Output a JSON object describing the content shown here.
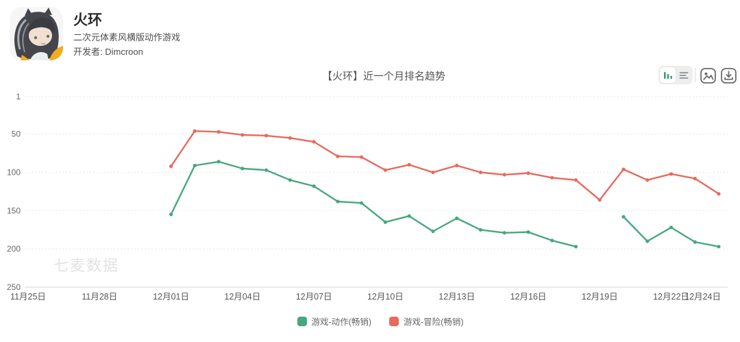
{
  "app": {
    "name": "火环",
    "subtitle": "二次元体素风横版动作游戏",
    "developer": "开发者: Dimcroon",
    "icon": "anime-girl-app-icon"
  },
  "toolbar": {
    "view_toggle": [
      {
        "name": "chart-view",
        "icon": "bar-chart-icon",
        "active": true
      },
      {
        "name": "table-view",
        "icon": "list-icon",
        "active": false
      }
    ],
    "actions": [
      {
        "name": "export-image",
        "icon": "image-icon"
      },
      {
        "name": "download",
        "icon": "download-icon"
      }
    ]
  },
  "chart_data": {
    "type": "line",
    "title": "【火环】近一个月排名趋势",
    "watermark": "七麦数据",
    "y_ticks": [
      1,
      50,
      100,
      150,
      200,
      250
    ],
    "y_inverted": true,
    "x_ticks": [
      "11月25日",
      "11月28日",
      "12月01日",
      "12月04日",
      "12月07日",
      "12月10日",
      "12月13日",
      "12月16日",
      "12月19日",
      "12月22日",
      "12月24日"
    ],
    "x_tick_offsets": [
      0,
      3,
      6,
      9,
      12,
      15,
      18,
      21,
      24,
      27,
      29
    ],
    "x_axis_total_days": 29,
    "first_value_offset_days": 6,
    "dates": [
      "12月01日",
      "12月02日",
      "12月03日",
      "12月04日",
      "12月05日",
      "12月06日",
      "12月07日",
      "12月08日",
      "12月09日",
      "12月10日",
      "12月11日",
      "12月12日",
      "12月13日",
      "12月14日",
      "12月15日",
      "12月16日",
      "12月17日",
      "12月18日",
      "12月19日",
      "12月20日",
      "12月21日",
      "12月22日",
      "12月23日",
      "12月24日"
    ],
    "series": [
      {
        "name": "游戏-动作(畅销)",
        "color": "#47a77f",
        "values": [
          155,
          91,
          86,
          95,
          97,
          110,
          118,
          138,
          140,
          165,
          157,
          177,
          160,
          175,
          179,
          178,
          189,
          197,
          null,
          158,
          190,
          172,
          191,
          197
        ]
      },
      {
        "name": "游戏-冒险(畅销)",
        "color": "#e76a5d",
        "values": [
          92,
          46,
          47,
          51,
          52,
          55,
          60,
          79,
          80,
          97,
          90,
          100,
          91,
          100,
          103,
          101,
          107,
          110,
          136,
          96,
          110,
          102,
          108,
          128
        ]
      }
    ],
    "legend_position": "bottom",
    "grid": "horizontal-dashed"
  }
}
